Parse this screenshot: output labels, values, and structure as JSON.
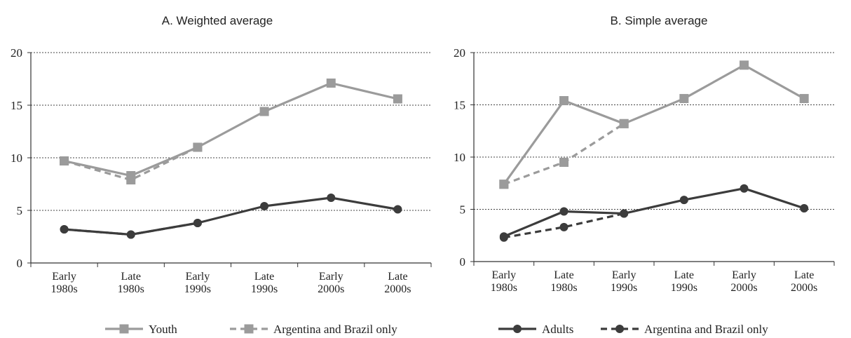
{
  "colors": {
    "youth": "#9b9b9b",
    "adults": "#3c3c3c",
    "axis": "#333333",
    "grid": "#444444"
  },
  "chart_data": [
    {
      "type": "line",
      "title": "A. Weighted average",
      "categories": [
        "Early\n1980s",
        "Late\n1980s",
        "Early\n1990s",
        "Late\n1990s",
        "Early\n2000s",
        "Late\n2000s"
      ],
      "ylim": [
        0,
        20
      ],
      "yticks": [
        0,
        5,
        10,
        15,
        20
      ],
      "grid": "horizontal dotted",
      "series": [
        {
          "name": "Youth",
          "group": "youth",
          "style": "solid",
          "marker": "square",
          "values": [
            9.7,
            8.3,
            11.0,
            14.4,
            17.1,
            15.6
          ]
        },
        {
          "name": "Argentina and Brazil only",
          "group": "youth",
          "style": "dashed",
          "marker": "square",
          "values": [
            9.7,
            7.9,
            11.0,
            null,
            null,
            null
          ]
        },
        {
          "name": "Adults",
          "group": "adults",
          "style": "solid",
          "marker": "circle",
          "values": [
            3.2,
            2.7,
            3.8,
            5.4,
            6.2,
            5.1
          ]
        },
        {
          "name": "Argentina and Brazil only",
          "group": "adults",
          "style": "dashed",
          "marker": "circle",
          "values": [
            3.2,
            2.7,
            3.8,
            null,
            null,
            null
          ]
        }
      ]
    },
    {
      "type": "line",
      "title": "B. Simple average",
      "categories": [
        "Early\n1980s",
        "Late\n1980s",
        "Early\n1990s",
        "Late\n1990s",
        "Early\n2000s",
        "Late\n2000s"
      ],
      "ylim": [
        0,
        20
      ],
      "yticks": [
        0,
        5,
        10,
        15,
        20
      ],
      "grid": "horizontal dotted",
      "series": [
        {
          "name": "Youth",
          "group": "youth",
          "style": "solid",
          "marker": "square",
          "values": [
            7.4,
            15.4,
            13.2,
            15.6,
            18.8,
            15.6
          ]
        },
        {
          "name": "Argentina and Brazil only",
          "group": "youth",
          "style": "dashed",
          "marker": "square",
          "values": [
            7.4,
            9.5,
            13.2,
            null,
            null,
            null
          ]
        },
        {
          "name": "Adults",
          "group": "adults",
          "style": "solid",
          "marker": "circle",
          "values": [
            2.4,
            4.8,
            4.6,
            5.9,
            7.0,
            5.1
          ]
        },
        {
          "name": "Argentina and Brazil only",
          "group": "adults",
          "style": "dashed",
          "marker": "circle",
          "values": [
            2.3,
            3.3,
            4.6,
            null,
            null,
            null
          ]
        }
      ]
    }
  ],
  "legend": {
    "placement": "bottom",
    "items": [
      {
        "label": "Youth",
        "group": "youth",
        "style": "solid",
        "marker": "square"
      },
      {
        "label": "Argentina and Brazil only",
        "group": "youth",
        "style": "dashed",
        "marker": "square"
      },
      {
        "label": "Adults",
        "group": "adults",
        "style": "solid",
        "marker": "circle"
      },
      {
        "label": "Argentina and Brazil only",
        "group": "adults",
        "style": "dashed",
        "marker": "circle"
      }
    ]
  }
}
